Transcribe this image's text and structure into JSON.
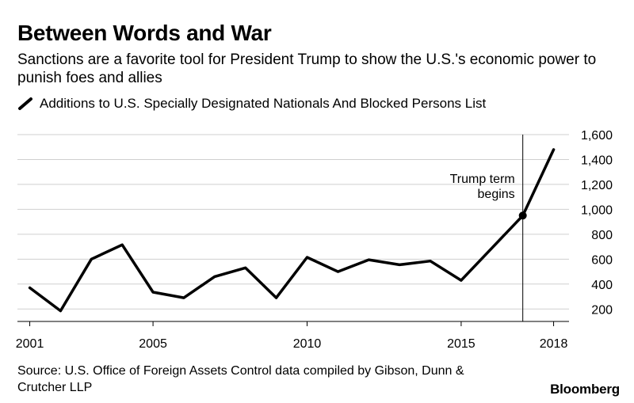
{
  "header": {
    "title": "Between Words and War",
    "subtitle": "Sanctions are a favorite tool for President Trump to show the U.S.'s economic power to punish foes and allies"
  },
  "legend": {
    "label": "Additions to U.S. Specially Designated Nationals And Blocked Persons List"
  },
  "footer": {
    "source": "Source: U.S. Office of Foreign Assets Control data compiled by Gibson, Dunn & Crutcher LLP",
    "brand": "Bloomberg"
  },
  "chart_data": {
    "type": "line",
    "title": "Between Words and War",
    "xlabel": "",
    "ylabel": "",
    "xlim": [
      2000.6,
      2018.5
    ],
    "ylim": [
      100,
      1600
    ],
    "yticks": [
      200,
      400,
      600,
      800,
      1000,
      1200,
      1400,
      1600
    ],
    "ytick_labels": [
      "200",
      "400",
      "600",
      "800",
      "1,000",
      "1,200",
      "1,400",
      "1,600"
    ],
    "xticks": [
      2001,
      2005,
      2010,
      2015,
      2018
    ],
    "xtick_labels": [
      "2001",
      "2005",
      "2010",
      "2015",
      "2018"
    ],
    "grid": true,
    "line_color": "#000000",
    "series": [
      {
        "name": "Additions to U.S. Specially Designated Nationals And Blocked Persons List",
        "x": [
          2001,
          2002,
          2003,
          2004,
          2005,
          2006,
          2007,
          2008,
          2009,
          2010,
          2011,
          2012,
          2013,
          2014,
          2015,
          2016,
          2017,
          2018
        ],
        "values": [
          370,
          185,
          600,
          715,
          335,
          290,
          460,
          530,
          290,
          615,
          500,
          595,
          555,
          585,
          430,
          690,
          950,
          1480
        ]
      }
    ],
    "annotations": [
      {
        "text_line1": "Trump term",
        "text_line2": "begins",
        "x": 2017,
        "y": 950
      }
    ]
  }
}
